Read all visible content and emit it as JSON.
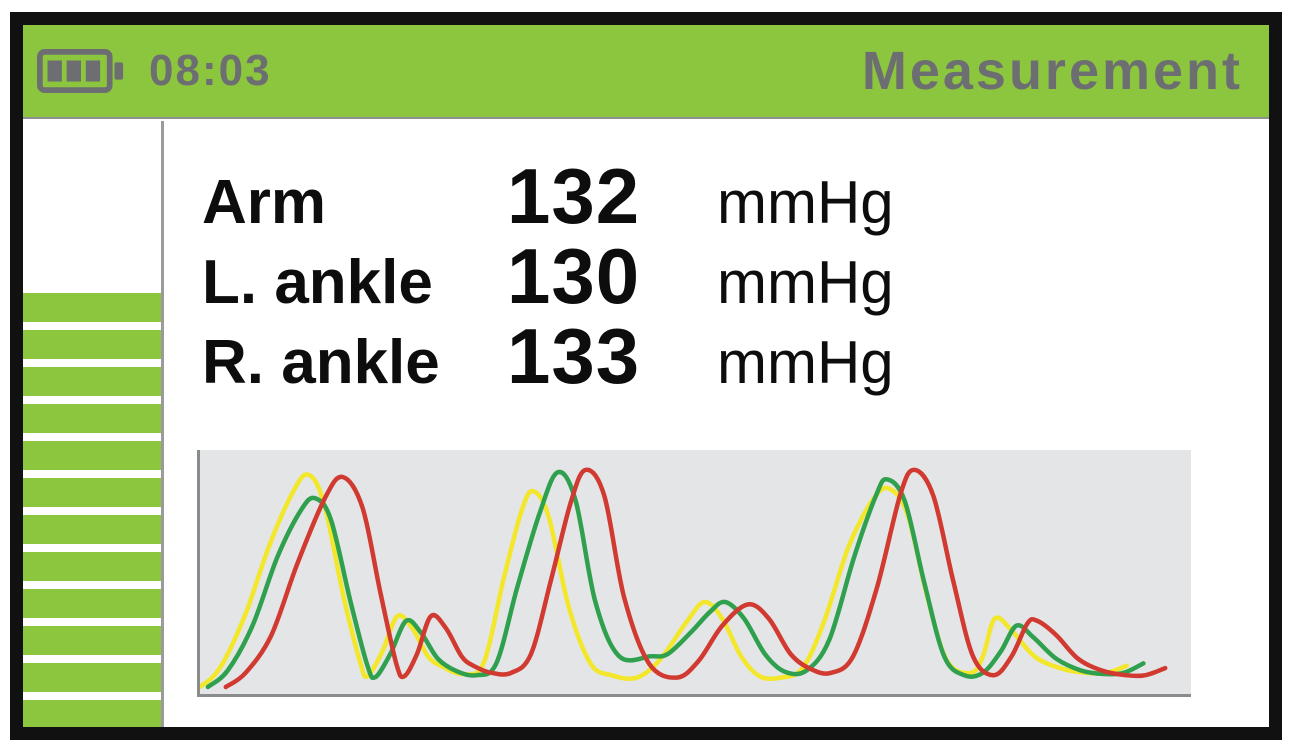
{
  "header": {
    "time": "08:03",
    "title": "Measurement",
    "battery": {
      "icon": "battery-icon",
      "bars_filled": 3,
      "bars_total": 3
    }
  },
  "sidebar": {
    "name": "cuff-pressure-indicator",
    "stripe_count": 12
  },
  "measurements": [
    {
      "label": "Arm",
      "value": "132",
      "unit": "mmHg"
    },
    {
      "label": "L. ankle",
      "value": "130",
      "unit": "mmHg"
    },
    {
      "label": "R. ankle",
      "value": "133",
      "unit": "mmHg"
    }
  ],
  "colors": {
    "green": "#8cc63e",
    "gray_text": "#6d6e71",
    "text": "#0d0d0d",
    "divider": "#9b9b9b",
    "chart_bg": "#e4e5e6",
    "chart_axis": "#8a8b8d",
    "screen_border": "#111111",
    "wave_yellow": "#f2e72b",
    "wave_green": "#2fa04e",
    "wave_red": "#d13a31"
  },
  "chart_data": {
    "type": "line",
    "title": "",
    "xlabel": "",
    "ylabel": "",
    "x_range": [
      0,
      100
    ],
    "y_range": [
      0,
      100
    ],
    "grid": false,
    "legend": "none",
    "background": "#e4e5e6",
    "axes_shown": [
      "left",
      "bottom"
    ],
    "description": "Three simultaneous arterial pulse waveforms (3 beats each with dicrotic bump); x = % of sweep width, y = relative amplitude %",
    "series": [
      {
        "name": "waveform-yellow",
        "color": "#f2e72b",
        "points": [
          [
            0,
            0
          ],
          [
            2,
            8
          ],
          [
            4.5,
            30
          ],
          [
            7,
            60
          ],
          [
            9.3,
            82
          ],
          [
            10.9,
            90
          ],
          [
            12.5,
            78
          ],
          [
            14.5,
            38
          ],
          [
            16.2,
            10
          ],
          [
            16.9,
            4.6
          ],
          [
            18.4,
            15
          ],
          [
            19.9,
            30
          ],
          [
            21.4,
            25
          ],
          [
            23,
            13
          ],
          [
            24.4,
            8.8
          ],
          [
            26.5,
            5.5
          ],
          [
            28.6,
            10
          ],
          [
            30.6,
            45
          ],
          [
            32.4,
            74
          ],
          [
            33.6,
            83
          ],
          [
            35.2,
            72
          ],
          [
            37.2,
            34
          ],
          [
            39.4,
            10
          ],
          [
            41.5,
            5
          ],
          [
            44.1,
            4
          ],
          [
            46.5,
            12
          ],
          [
            49,
            27
          ],
          [
            50.9,
            36
          ],
          [
            52.7,
            29
          ],
          [
            54.6,
            13
          ],
          [
            56.5,
            4.5
          ],
          [
            58.6,
            4
          ],
          [
            60.8,
            8
          ],
          [
            63,
            28
          ],
          [
            65.5,
            60
          ],
          [
            68,
            80
          ],
          [
            69.6,
            84
          ],
          [
            71.4,
            73
          ],
          [
            73.4,
            38
          ],
          [
            75.4,
            11
          ],
          [
            77.8,
            6
          ],
          [
            79,
            13
          ],
          [
            80.2,
            29
          ],
          [
            81.9,
            24
          ],
          [
            84.2,
            13
          ],
          [
            86.8,
            8
          ],
          [
            89.3,
            6
          ],
          [
            91.5,
            6
          ],
          [
            93.5,
            9
          ]
        ]
      },
      {
        "name": "waveform-green",
        "color": "#2fa04e",
        "points": [
          [
            0.8,
            0
          ],
          [
            2.8,
            7
          ],
          [
            5.3,
            26
          ],
          [
            7.8,
            55
          ],
          [
            10.2,
            75
          ],
          [
            11.6,
            80
          ],
          [
            13.2,
            71
          ],
          [
            15.2,
            36
          ],
          [
            16.9,
            9
          ],
          [
            17.7,
            4.2
          ],
          [
            19.2,
            14
          ],
          [
            20.8,
            28
          ],
          [
            22.3,
            23
          ],
          [
            24,
            12
          ],
          [
            25.9,
            6.7
          ],
          [
            27.9,
            5
          ],
          [
            29.9,
            10
          ],
          [
            32,
            42
          ],
          [
            34.3,
            74
          ],
          [
            36.1,
            91
          ],
          [
            37.9,
            79
          ],
          [
            39.9,
            36
          ],
          [
            42.3,
            13
          ],
          [
            45.5,
            13
          ],
          [
            47.2,
            14
          ],
          [
            49.5,
            23
          ],
          [
            51.5,
            32
          ],
          [
            53,
            36
          ],
          [
            54.9,
            29
          ],
          [
            57,
            14
          ],
          [
            59,
            6.5
          ],
          [
            61.2,
            7
          ],
          [
            63.5,
            20
          ],
          [
            66,
            55
          ],
          [
            68.2,
            81
          ],
          [
            69.3,
            88
          ],
          [
            71.1,
            79
          ],
          [
            73.1,
            44
          ],
          [
            75.1,
            13
          ],
          [
            77.1,
            5
          ],
          [
            79,
            6
          ],
          [
            80.8,
            15
          ],
          [
            82.4,
            26
          ],
          [
            84.1,
            21
          ],
          [
            86.4,
            12
          ],
          [
            88.9,
            7
          ],
          [
            91.2,
            5.5
          ],
          [
            93.2,
            6
          ],
          [
            95.2,
            10
          ]
        ]
      },
      {
        "name": "waveform-red",
        "color": "#d13a31",
        "points": [
          [
            2.6,
            0
          ],
          [
            4.6,
            6
          ],
          [
            7.2,
            22
          ],
          [
            9.8,
            52
          ],
          [
            12.6,
            80
          ],
          [
            14.4,
            89
          ],
          [
            16.4,
            76
          ],
          [
            18.2,
            40
          ],
          [
            19.8,
            10
          ],
          [
            20.6,
            4.5
          ],
          [
            21.9,
            14
          ],
          [
            23.3,
            30
          ],
          [
            24.8,
            25
          ],
          [
            26.4,
            13
          ],
          [
            27.6,
            9
          ],
          [
            29.4,
            6
          ],
          [
            31.4,
            6
          ],
          [
            33.4,
            14
          ],
          [
            35.4,
            45
          ],
          [
            37.4,
            78
          ],
          [
            38.9,
            92
          ],
          [
            40.8,
            81
          ],
          [
            42.8,
            38
          ],
          [
            45.3,
            10
          ],
          [
            48.1,
            4
          ],
          [
            50.3,
            11
          ],
          [
            52.7,
            26
          ],
          [
            55.3,
            35
          ],
          [
            57.4,
            29
          ],
          [
            59.6,
            14
          ],
          [
            61.7,
            7.5
          ],
          [
            63.7,
            6
          ],
          [
            65.9,
            13
          ],
          [
            68.3,
            42
          ],
          [
            70.7,
            82
          ],
          [
            72.1,
            92
          ],
          [
            74,
            81
          ],
          [
            76,
            45
          ],
          [
            78,
            13
          ],
          [
            80.1,
            5
          ],
          [
            81.9,
            13
          ],
          [
            83.5,
            27
          ],
          [
            84.5,
            28
          ],
          [
            86.4,
            22
          ],
          [
            88.6,
            12
          ],
          [
            91,
            7
          ],
          [
            93.4,
            5
          ],
          [
            95.4,
            5
          ],
          [
            97.4,
            8
          ]
        ]
      }
    ]
  }
}
